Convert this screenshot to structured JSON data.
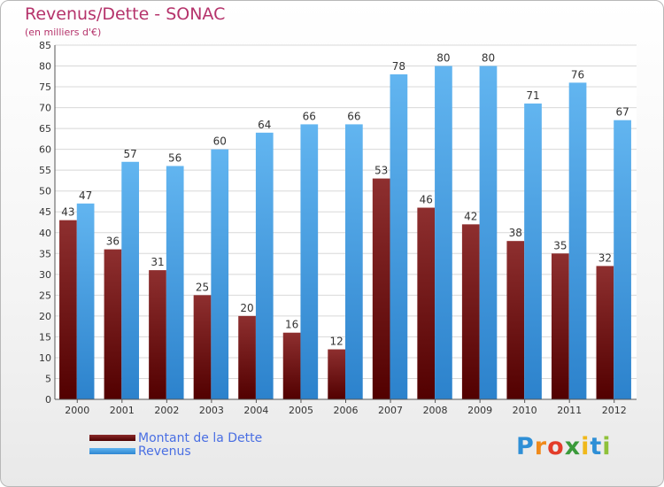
{
  "header": {
    "title": "Revenus/Dette - SONAC",
    "subtitle": "(en milliers d'€)"
  },
  "brand": {
    "letters": [
      "P",
      "r",
      "o",
      "x",
      "i",
      "t",
      "i"
    ],
    "colors": [
      "#2e8fd6",
      "#f08a1a",
      "#e33d2a",
      "#3a9a3a",
      "#f0b81a",
      "#2e8fd6",
      "#8fc13a"
    ]
  },
  "chart_data": {
    "type": "bar",
    "categories": [
      "2000",
      "2001",
      "2002",
      "2003",
      "2004",
      "2005",
      "2006",
      "2007",
      "2008",
      "2009",
      "2010",
      "2011",
      "2012"
    ],
    "series": [
      {
        "name": "Montant de la Dette",
        "color": "#6b1414",
        "values": [
          43,
          36,
          31,
          25,
          20,
          16,
          12,
          53,
          46,
          42,
          38,
          35,
          32
        ]
      },
      {
        "name": "Revenus",
        "color": "#3c9be5",
        "values": [
          47,
          57,
          56,
          60,
          64,
          66,
          66,
          78,
          80,
          80,
          71,
          76,
          67
        ]
      }
    ],
    "ylim": [
      0,
      85
    ],
    "yticks": [
      "0",
      "5",
      "10",
      "15",
      "20",
      "25",
      "30",
      "35",
      "40",
      "45",
      "50",
      "55",
      "60",
      "65",
      "70",
      "75",
      "80",
      "85"
    ],
    "grid": true,
    "legend_position": "bottom-left"
  }
}
